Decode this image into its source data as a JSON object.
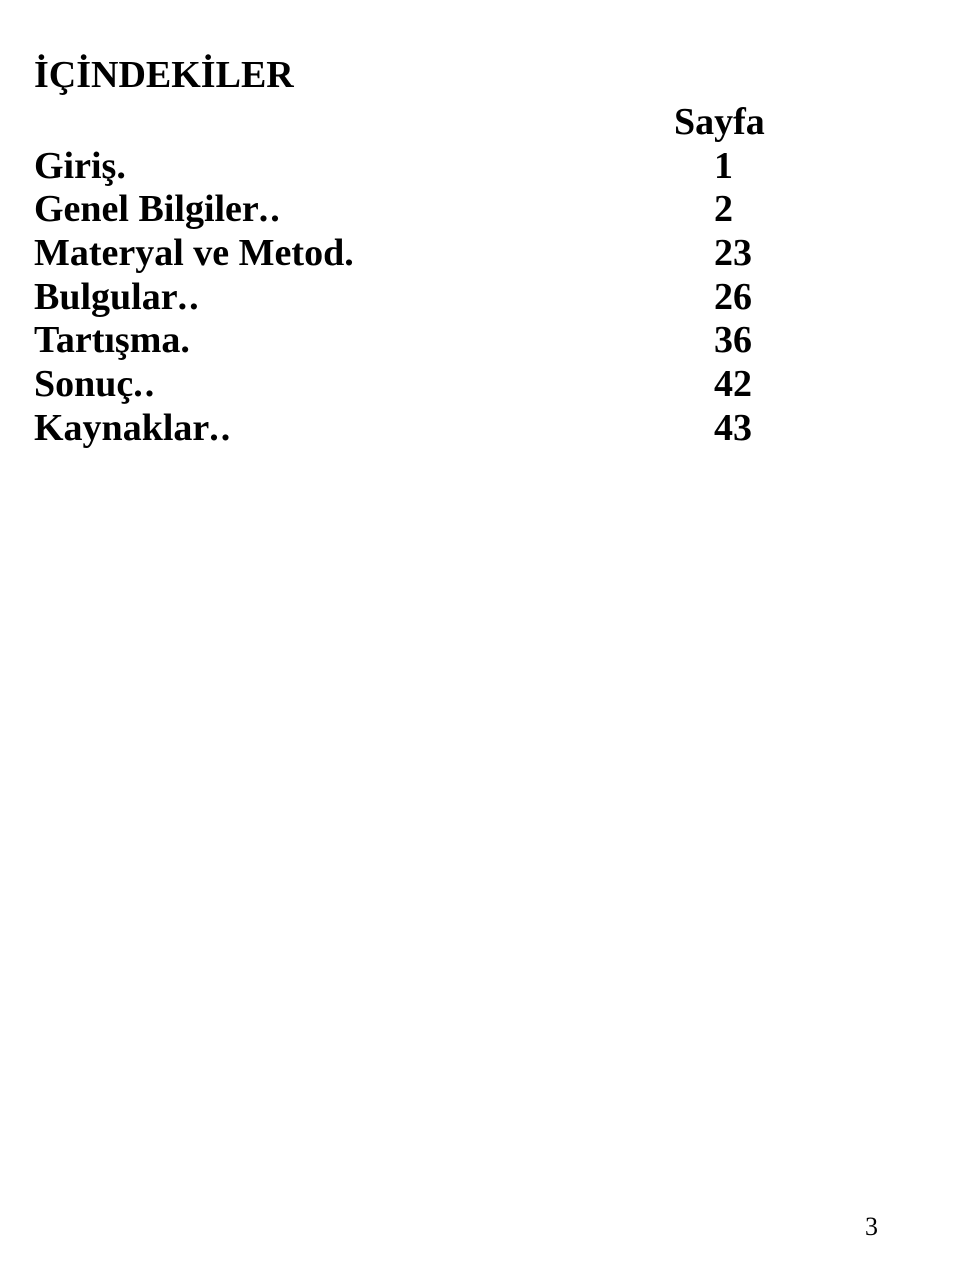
{
  "title": "İÇİNDEKİLER",
  "page_header": "Sayfa",
  "entries": [
    {
      "label": "Giriş",
      "leader": ".",
      "page": "1"
    },
    {
      "label": "Genel Bilgiler",
      "leader": "..",
      "page": "2"
    },
    {
      "label": "Materyal ve Metod",
      "leader": ".",
      "page": "23"
    },
    {
      "label": "Bulgular",
      "leader": "..",
      "page": "26"
    },
    {
      "label": "Tartışma",
      "leader": ".",
      "page": "36"
    },
    {
      "label": "Sonuç",
      "leader": "..",
      "page": "42"
    },
    {
      "label": "Kaynaklar",
      "leader": "..",
      "page": "43"
    }
  ],
  "footer_page_number": "3"
}
